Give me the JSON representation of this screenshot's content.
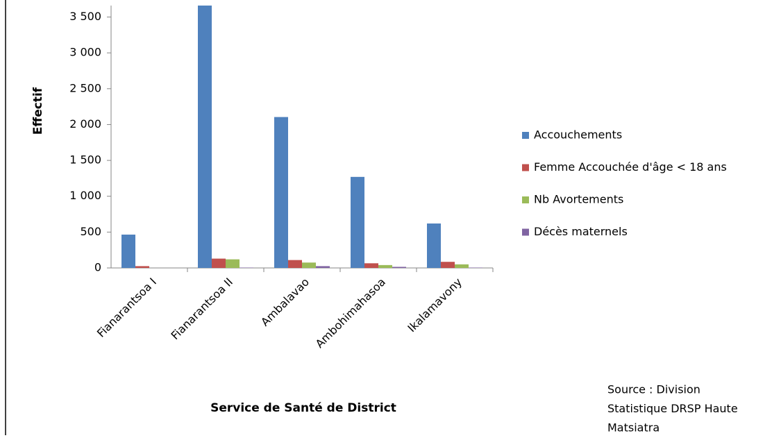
{
  "chart_data": {
    "type": "bar",
    "x_label": "Service de Santé de District",
    "y_label": "Effectif",
    "categories": [
      "Fianarantsoa I",
      "Fianarantsoa II",
      "Ambalavao",
      "Ambohimahasoa",
      "Ikalamavony"
    ],
    "series": [
      {
        "name": "Accouchements",
        "color": "#4f81bd",
        "values": [
          465,
          3660,
          2105,
          1270,
          620
        ]
      },
      {
        "name": "Femme Accouchée d'âge < 18 ans",
        "color": "#c0504d",
        "values": [
          25,
          130,
          110,
          65,
          85
        ]
      },
      {
        "name": "Nb Avortements",
        "color": "#9bbb59",
        "values": [
          0,
          120,
          75,
          40,
          50
        ]
      },
      {
        "name": "Décès maternels",
        "color": "#8064a2",
        "values": [
          0,
          5,
          25,
          15,
          5
        ]
      }
    ],
    "ylim": [
      0,
      3660
    ],
    "yticks": [
      0,
      500,
      {
        "value": 1000,
        "label": "1 000"
      },
      {
        "value": 1500,
        "label": "1 500"
      },
      {
        "value": 2000,
        "label": "2 000"
      },
      {
        "value": 2500,
        "label": "2 500"
      },
      {
        "value": 3000,
        "label": "3 000"
      },
      {
        "value": 3500,
        "label": "3 500"
      }
    ],
    "grid": false,
    "legend": "right",
    "source": [
      "Source : Division",
      "Statistique  DRSP Haute",
      "Matsiatra"
    ]
  }
}
